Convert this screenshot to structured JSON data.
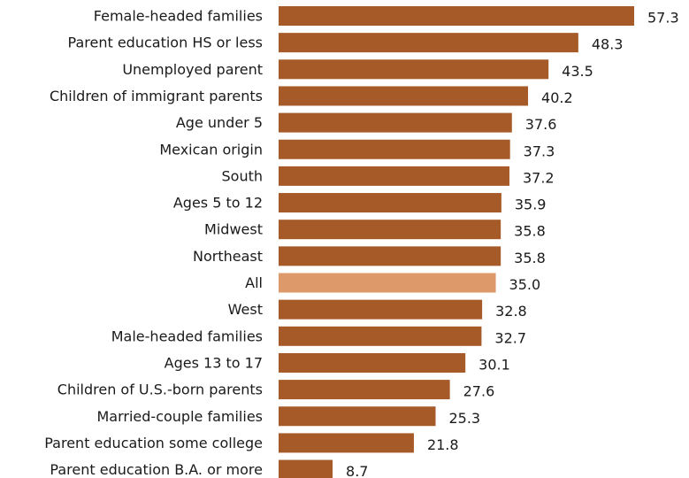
{
  "chart_data": {
    "type": "bar",
    "orientation": "horizontal",
    "title": "",
    "xlabel": "",
    "ylabel": "",
    "xlim": [
      0,
      57.3
    ],
    "grid": false,
    "legend": "none",
    "categories": [
      "Female-headed families",
      "Parent education HS or less",
      "Unemployed parent",
      "Children of immigrant parents",
      "Age under 5",
      "Mexican origin",
      "South",
      "Ages 5 to 12",
      "Midwest",
      "Northeast",
      "All",
      "West",
      "Male-headed families",
      "Ages 13 to 17",
      "Children of U.S.-born parents",
      "Married-couple families",
      "Parent education some college",
      "Parent education B.A. or more"
    ],
    "values": [
      57.3,
      48.3,
      43.5,
      40.2,
      37.6,
      37.3,
      37.2,
      35.9,
      35.8,
      35.8,
      35.0,
      32.8,
      32.7,
      30.1,
      27.6,
      25.3,
      21.8,
      8.7
    ],
    "value_labels": [
      "57.3",
      "48.3",
      "43.5",
      "40.2",
      "37.6",
      "37.3",
      "37.2",
      "35.9",
      "35.8",
      "35.8",
      "35.0",
      "32.8",
      "32.7",
      "30.1",
      "27.6",
      "25.3",
      "21.8",
      "8.7"
    ],
    "highlight_category": "All",
    "colors": {
      "bar": "#a65a28",
      "highlight": "#de996a",
      "text": "#1a1a1a",
      "background": "#ffffff"
    }
  }
}
